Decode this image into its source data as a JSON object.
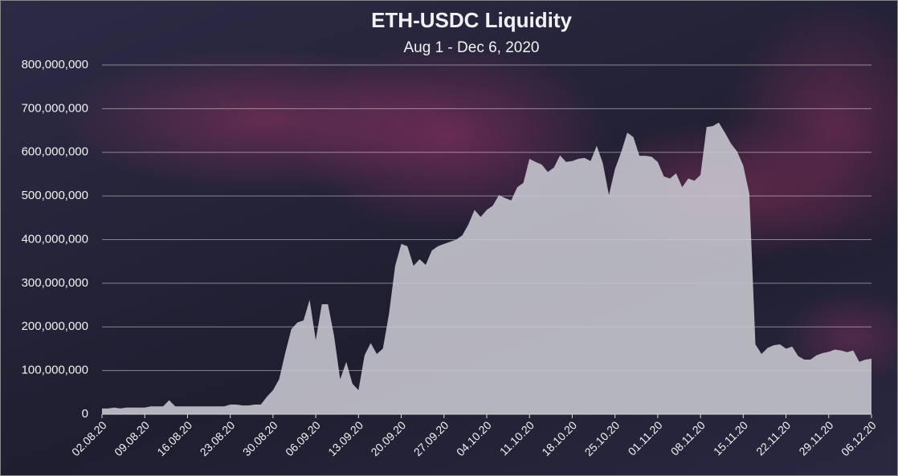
{
  "chart_data": {
    "type": "area",
    "title": "ETH-USDC Liquidity",
    "subtitle": "Aug 1 - Dec 6, 2020",
    "categories": [
      "02.08.20",
      null,
      null,
      null,
      null,
      null,
      null,
      "09.08.20",
      null,
      null,
      null,
      null,
      null,
      null,
      "16.08.20",
      null,
      null,
      null,
      null,
      null,
      null,
      "23.08.20",
      null,
      null,
      null,
      null,
      null,
      null,
      "30.08.20",
      null,
      null,
      null,
      null,
      null,
      null,
      "06.09.20",
      null,
      null,
      null,
      null,
      null,
      null,
      "13.09.20",
      null,
      null,
      null,
      null,
      null,
      null,
      "20.09.20",
      null,
      null,
      null,
      null,
      null,
      null,
      "27.09.20",
      null,
      null,
      null,
      null,
      null,
      null,
      "04.10.20",
      null,
      null,
      null,
      null,
      null,
      null,
      "11.10.20",
      null,
      null,
      null,
      null,
      null,
      null,
      "18.10.20",
      null,
      null,
      null,
      null,
      null,
      null,
      "25.10.20",
      null,
      null,
      null,
      null,
      null,
      null,
      "01.11.20",
      null,
      null,
      null,
      null,
      null,
      null,
      "08.11.20",
      null,
      null,
      null,
      null,
      null,
      null,
      "15.11.20",
      null,
      null,
      null,
      null,
      null,
      null,
      "22.11.20",
      null,
      null,
      null,
      null,
      null,
      null,
      "29.11.20",
      null,
      null,
      null,
      null,
      null,
      null,
      "06.12.20"
    ],
    "values": [
      13000000,
      13000000,
      15000000,
      13000000,
      15000000,
      15000000,
      15000000,
      15000000,
      18000000,
      18000000,
      18000000,
      32000000,
      18000000,
      18000000,
      18000000,
      18000000,
      18000000,
      18000000,
      18000000,
      18000000,
      18000000,
      22000000,
      22000000,
      20000000,
      20000000,
      22000000,
      22000000,
      40000000,
      55000000,
      80000000,
      140000000,
      195000000,
      210000000,
      215000000,
      262000000,
      170000000,
      252000000,
      252000000,
      180000000,
      80000000,
      120000000,
      70000000,
      55000000,
      135000000,
      163000000,
      138000000,
      150000000,
      230000000,
      340000000,
      390000000,
      385000000,
      340000000,
      355000000,
      342000000,
      375000000,
      385000000,
      390000000,
      395000000,
      400000000,
      410000000,
      435000000,
      468000000,
      452000000,
      468000000,
      478000000,
      502000000,
      495000000,
      490000000,
      520000000,
      530000000,
      585000000,
      578000000,
      572000000,
      555000000,
      565000000,
      593000000,
      578000000,
      580000000,
      585000000,
      587000000,
      580000000,
      615000000,
      575000000,
      502000000,
      562000000,
      600000000,
      645000000,
      635000000,
      592000000,
      592000000,
      590000000,
      578000000,
      545000000,
      540000000,
      552000000,
      520000000,
      540000000,
      535000000,
      548000000,
      658000000,
      660000000,
      668000000,
      645000000,
      620000000,
      602000000,
      570000000,
      505000000,
      160000000,
      138000000,
      152000000,
      158000000,
      160000000,
      150000000,
      155000000,
      133000000,
      125000000,
      125000000,
      135000000,
      140000000,
      143000000,
      148000000,
      146000000,
      142000000,
      146000000,
      120000000,
      125000000,
      127000000
    ],
    "color": "#c9c9d1",
    "ylim": [
      0,
      800000000
    ],
    "yticks": [
      0,
      {
        "value": 100000000,
        "label": "100,000,000"
      },
      {
        "value": 200000000,
        "label": "200,000,000"
      },
      {
        "value": 300000000,
        "label": "300,000,000"
      },
      {
        "value": 400000000,
        "label": "400,000,000"
      },
      {
        "value": 500000000,
        "label": "500,000,000"
      },
      {
        "value": 600000000,
        "label": "600,000,000"
      },
      {
        "value": 700000000,
        "label": "700,000,000"
      },
      {
        "value": 800000000,
        "label": "800,000,000"
      }
    ],
    "grid": true
  }
}
